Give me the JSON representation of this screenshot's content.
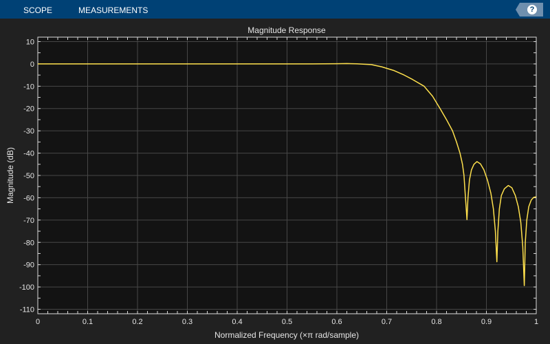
{
  "toolbar": {
    "tabs": [
      "SCOPE",
      "MEASUREMENTS"
    ],
    "help_icon": "question-circle-icon",
    "help_glyph": "?"
  },
  "colors": {
    "toolbar": "#004175",
    "background": "#212121",
    "plot_background": "#131313",
    "grid": "#474747",
    "line": "#ffe14d"
  },
  "chart_data": {
    "type": "line",
    "title": "Magnitude Response",
    "xlabel": "Normalized Frequency (×π rad/sample)",
    "ylabel": "Magnitude (dB)",
    "xlim": [
      0,
      1
    ],
    "ylim": [
      -112,
      12
    ],
    "xticks": [
      0,
      0.1,
      0.2,
      0.3,
      0.4,
      0.5,
      0.6,
      0.7,
      0.8,
      0.9,
      1
    ],
    "yticks": [
      10,
      0,
      -10,
      -20,
      -30,
      -40,
      -50,
      -60,
      -70,
      -80,
      -90,
      -100,
      -110
    ],
    "grid": true,
    "series": [
      {
        "points": [
          [
            0,
            0
          ],
          [
            0.55,
            0
          ],
          [
            0.6,
            0.1
          ],
          [
            0.62,
            0.15
          ],
          [
            0.64,
            0.05
          ],
          [
            0.669,
            -0.3
          ],
          [
            0.69,
            -1.3
          ],
          [
            0.715,
            -3
          ],
          [
            0.735,
            -5
          ],
          [
            0.752,
            -7
          ],
          [
            0.775,
            -10
          ],
          [
            0.792,
            -14.5
          ],
          [
            0.807,
            -20
          ],
          [
            0.82,
            -25
          ],
          [
            0.832,
            -30
          ],
          [
            0.84,
            -35
          ],
          [
            0.847,
            -40
          ],
          [
            0.852,
            -45
          ],
          [
            0.855,
            -50
          ],
          [
            0.858,
            -60
          ],
          [
            0.861,
            -69.8
          ],
          [
            0.863,
            -60
          ],
          [
            0.866,
            -52
          ],
          [
            0.87,
            -47.5
          ],
          [
            0.875,
            -45
          ],
          [
            0.881,
            -43.8
          ],
          [
            0.888,
            -44.8
          ],
          [
            0.895,
            -47.5
          ],
          [
            0.902,
            -52
          ],
          [
            0.909,
            -58
          ],
          [
            0.914,
            -65
          ],
          [
            0.918,
            -75
          ],
          [
            0.921,
            -88.7
          ],
          [
            0.923,
            -75
          ],
          [
            0.926,
            -65
          ],
          [
            0.93,
            -59
          ],
          [
            0.936,
            -56
          ],
          [
            0.944,
            -54.5
          ],
          [
            0.951,
            -55.5
          ],
          [
            0.958,
            -59
          ],
          [
            0.964,
            -64
          ],
          [
            0.969,
            -71
          ],
          [
            0.973,
            -82
          ],
          [
            0.976,
            -99.4
          ],
          [
            0.978,
            -80
          ],
          [
            0.981,
            -70
          ],
          [
            0.985,
            -64
          ],
          [
            0.99,
            -61
          ],
          [
            0.995,
            -59.8
          ],
          [
            1.0,
            -59.6
          ]
        ]
      }
    ]
  }
}
